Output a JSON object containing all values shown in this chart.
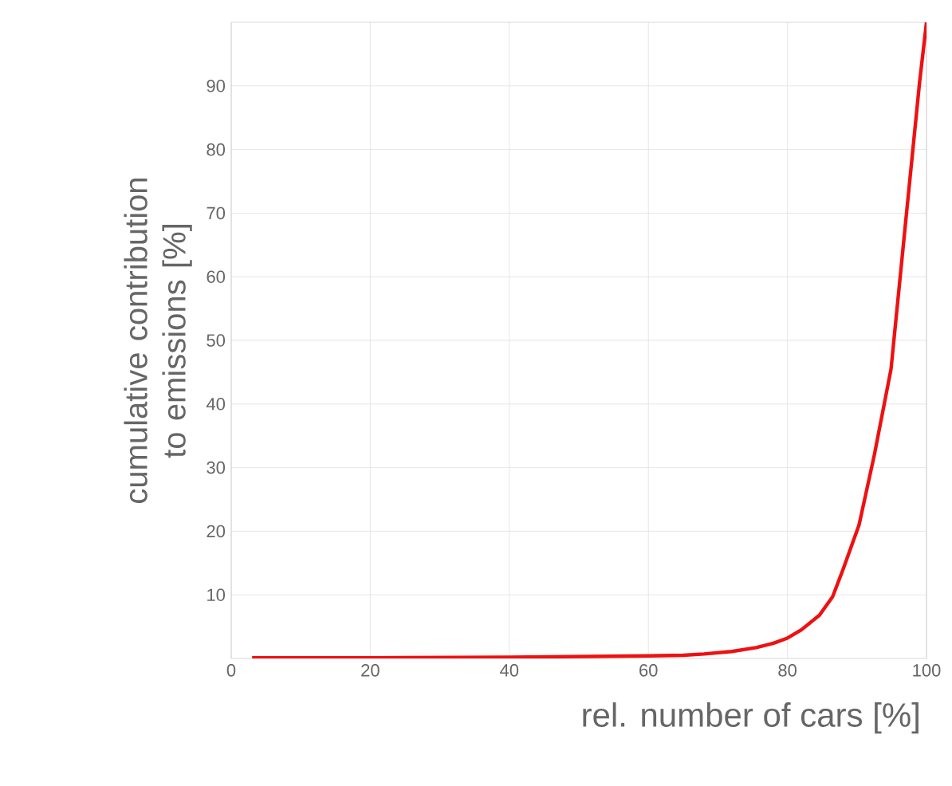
{
  "chart_data": {
    "type": "line",
    "xlabel": "rel. number of cars [%]",
    "ylabel": "cumulative contribution to emissions [%]",
    "x": [
      3,
      20,
      40,
      50,
      60,
      65,
      68,
      72,
      75.5,
      78,
      80,
      82,
      84.6,
      86.5,
      88,
      90.3,
      92.5,
      94.9,
      97.1,
      99,
      100
    ],
    "series": [
      {
        "color": "#ee1111",
        "values": [
          0.1,
          0.1,
          0.2,
          0.3,
          0.4,
          0.5,
          0.7,
          1.1,
          1.7,
          2.4,
          3.2,
          4.5,
          6.8,
          9.7,
          14,
          21,
          32,
          45.5,
          69.7,
          90.5,
          100
        ]
      }
    ],
    "xlim": [
      0,
      100
    ],
    "ylim": [
      0,
      100
    ],
    "xticks": [
      0,
      20,
      40,
      60,
      80,
      100
    ],
    "yticks": [
      10,
      20,
      30,
      40,
      50,
      60,
      70,
      80,
      90
    ],
    "grid": true,
    "marker": "none",
    "line_style": "solid"
  }
}
